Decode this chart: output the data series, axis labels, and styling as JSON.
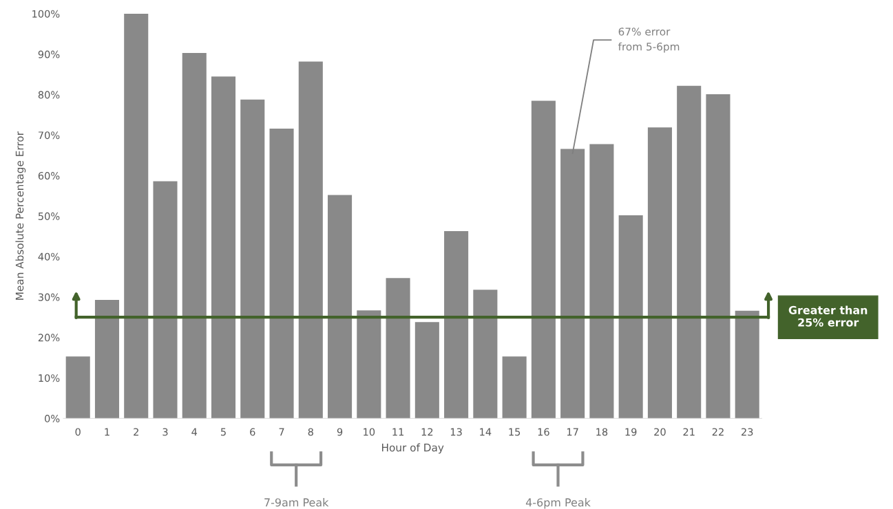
{
  "chart_data": {
    "type": "bar",
    "xlabel": "Hour of Day",
    "ylabel": "Mean Absolute Percentage Error",
    "categories": [
      "0",
      "1",
      "2",
      "3",
      "4",
      "5",
      "6",
      "7",
      "8",
      "9",
      "10",
      "11",
      "12",
      "13",
      "14",
      "15",
      "16",
      "17",
      "18",
      "19",
      "20",
      "21",
      "22",
      "23"
    ],
    "values": [
      15.3,
      29.3,
      100,
      58.6,
      90.3,
      84.5,
      78.8,
      71.6,
      88.2,
      55.2,
      26.7,
      34.7,
      23.8,
      46.3,
      31.8,
      15.3,
      78.5,
      66.6,
      67.8,
      50.2,
      71.9,
      82.2,
      80.1,
      26.6
    ],
    "color": "#898989",
    "ylim": [
      0,
      100
    ],
    "yticks": [
      {
        "value": 0,
        "label": "0%"
      },
      {
        "value": 10,
        "label": "10%"
      },
      {
        "value": 20,
        "label": "20%"
      },
      {
        "value": 30,
        "label": "30%"
      },
      {
        "value": 40,
        "label": "40%"
      },
      {
        "value": 50,
        "label": "50%"
      },
      {
        "value": 60,
        "label": "60%"
      },
      {
        "value": 70,
        "label": "70%"
      },
      {
        "value": 80,
        "label": "80%"
      },
      {
        "value": 90,
        "label": "90%"
      },
      {
        "value": 100,
        "label": "100%"
      }
    ],
    "ref_lines": [
      {
        "axis": "y",
        "value": 25,
        "label": "Greater than\n25% error",
        "color": "#43632b"
      }
    ],
    "annotations": [
      "67% error\nfrom 5-6pm",
      "7-9am Peak",
      "4-6pm Peak"
    ],
    "grid": false,
    "legend": false
  }
}
